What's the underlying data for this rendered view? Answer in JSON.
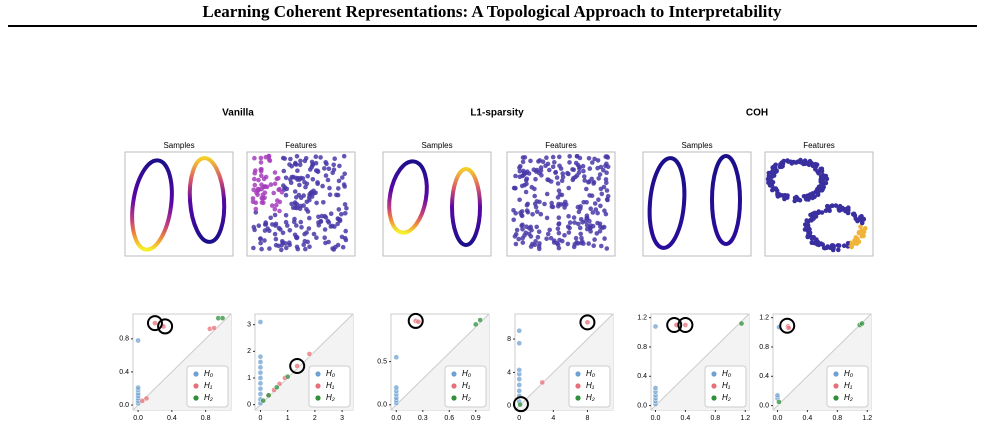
{
  "header": {
    "title": "Learning Coherent Representations: A Topological Approach to Interpretability"
  },
  "figure": {
    "groups": [
      {
        "title": "Vanilla",
        "panels": [
          "Samples",
          "Features"
        ]
      },
      {
        "title": "L1-sparsity",
        "panels": [
          "Samples",
          "Features"
        ]
      },
      {
        "title": "COH",
        "panels": [
          "Samples",
          "Features"
        ]
      }
    ]
  },
  "chart_data": [
    {
      "type": "scatter",
      "xlim": [
        -0.06,
        1.1
      ],
      "ylim": [
        -0.06,
        1.1
      ],
      "xticks": [
        {
          "value": 0,
          "label": "0.0"
        },
        0.4,
        0.8
      ],
      "yticks": [
        {
          "value": 0,
          "label": "0.0"
        },
        0.4,
        0.8
      ],
      "legend": "lower right",
      "series": [
        {
          "name": "H₀",
          "color": "#6fa1d2",
          "x": [
            0,
            0,
            0,
            0,
            0,
            0,
            0,
            0
          ],
          "values": [
            0.02,
            0.05,
            0.08,
            0.11,
            0.14,
            0.18,
            0.21,
            0.78
          ]
        },
        {
          "name": "H₁",
          "color": "#e8707a",
          "x": [
            0.05,
            0.1,
            0.2,
            0.3,
            0.85,
            0.9
          ],
          "values": [
            0.05,
            0.08,
            0.99,
            0.95,
            0.92,
            0.93
          ]
        },
        {
          "name": "H₂",
          "color": "#2f8f3b",
          "x": [
            0.95,
            1.0
          ],
          "values": [
            1.05,
            1.05
          ]
        }
      ],
      "highlight": {
        "x": [
          0.2,
          0.32
        ],
        "y": [
          0.99,
          0.95
        ]
      }
    },
    {
      "type": "scatter",
      "xlim": [
        -0.2,
        3.4
      ],
      "ylim": [
        -0.2,
        3.4
      ],
      "xticks": [
        0,
        1,
        2,
        3
      ],
      "yticks": [
        0,
        1,
        2,
        3
      ],
      "legend": "lower right",
      "series": [
        {
          "name": "H₀",
          "color": "#6fa1d2",
          "x": [
            0,
            0,
            0,
            0,
            0,
            0,
            0,
            0,
            0,
            0,
            0
          ],
          "values": [
            0.05,
            0.2,
            0.4,
            0.6,
            0.8,
            1.0,
            1.2,
            1.4,
            1.6,
            1.8,
            3.1
          ]
        },
        {
          "name": "H₁",
          "color": "#e8707a",
          "x": [
            0.3,
            0.5,
            0.7,
            0.9,
            1.35,
            1.8
          ],
          "values": [
            0.35,
            0.55,
            0.78,
            1.0,
            1.45,
            1.9
          ]
        },
        {
          "name": "H₂",
          "color": "#2f8f3b",
          "x": [
            0.1,
            0.3,
            0.6,
            1.0
          ],
          "values": [
            0.15,
            0.35,
            0.65,
            1.05
          ]
        }
      ],
      "highlight": {
        "x": [
          1.35
        ],
        "y": [
          1.45
        ]
      }
    },
    {
      "type": "scatter",
      "xlim": [
        -0.06,
        1.05
      ],
      "ylim": [
        -0.06,
        1.05
      ],
      "xticks": [
        {
          "value": 0,
          "label": "0.0"
        },
        0.3,
        0.6,
        0.9
      ],
      "yticks": [
        {
          "value": 0,
          "label": "0.0"
        },
        0.5
      ],
      "legend": "lower right",
      "series": [
        {
          "name": "H₀",
          "color": "#6fa1d2",
          "x": [
            0,
            0,
            0,
            0,
            0,
            0,
            0
          ],
          "values": [
            0.02,
            0.05,
            0.08,
            0.12,
            0.16,
            0.2,
            0.55
          ]
        },
        {
          "name": "H₁",
          "color": "#e8707a",
          "x": [
            0.22,
            0.25
          ],
          "values": [
            0.97,
            0.96
          ]
        },
        {
          "name": "H₂",
          "color": "#2f8f3b",
          "x": [
            0.9,
            0.95
          ],
          "values": [
            0.93,
            0.98
          ]
        }
      ],
      "highlight": {
        "x": [
          0.22
        ],
        "y": [
          0.97
        ]
      }
    },
    {
      "type": "scatter",
      "xlim": [
        -0.5,
        11
      ],
      "ylim": [
        -0.5,
        11
      ],
      "xticks": [
        0,
        4,
        8
      ],
      "yticks": [
        0,
        4,
        8
      ],
      "legend": "lower right",
      "series": [
        {
          "name": "H₀",
          "color": "#6fa1d2",
          "x": [
            0,
            0,
            0,
            0,
            0,
            0,
            0,
            0,
            0
          ],
          "values": [
            0.5,
            1.2,
            1.8,
            2.5,
            3.2,
            3.8,
            4.3,
            7.5,
            9
          ]
        },
        {
          "name": "H₁",
          "color": "#e8707a",
          "x": [
            2.7,
            8
          ],
          "values": [
            2.8,
            10
          ]
        },
        {
          "name": "H₂",
          "color": "#2f8f3b",
          "x": [
            0.1
          ],
          "values": [
            0.15
          ]
        }
      ],
      "highlight": {
        "x": [
          8,
          0.2
        ],
        "y": [
          10,
          0.2
        ]
      }
    },
    {
      "type": "scatter",
      "xlim": [
        -0.06,
        1.25
      ],
      "ylim": [
        -0.06,
        1.25
      ],
      "xticks": [
        {
          "value": 0,
          "label": "0.0"
        },
        0.4,
        0.8,
        1.2
      ],
      "yticks": [
        {
          "value": 0,
          "label": "0.0"
        },
        0.4,
        0.8,
        1.2
      ],
      "legend": "lower right",
      "series": [
        {
          "name": "H₀",
          "color": "#6fa1d2",
          "x": [
            0,
            0,
            0,
            0,
            0,
            0,
            0
          ],
          "values": [
            0.02,
            0.06,
            0.1,
            0.14,
            0.19,
            0.24,
            1.08
          ]
        },
        {
          "name": "H₁",
          "color": "#e8707a",
          "x": [
            0.28,
            0.4
          ],
          "values": [
            1.1,
            1.1
          ]
        },
        {
          "name": "H₂",
          "color": "#2f8f3b",
          "x": [
            1.15
          ],
          "values": [
            1.12
          ]
        }
      ],
      "highlight": {
        "x": [
          0.25,
          0.4
        ],
        "y": [
          1.1,
          1.1
        ]
      }
    },
    {
      "type": "scatter",
      "xlim": [
        -0.06,
        1.25
      ],
      "ylim": [
        -0.06,
        1.25
      ],
      "xticks": [
        {
          "value": 0,
          "label": "0.0"
        },
        0.4,
        0.8,
        1.2
      ],
      "yticks": [
        {
          "value": 0,
          "label": "0.0"
        },
        0.4,
        0.8,
        1.2
      ],
      "legend": "lower right",
      "series": [
        {
          "name": "H₀",
          "color": "#6fa1d2",
          "x": [
            0,
            0,
            0.02
          ],
          "values": [
            0.1,
            0.14,
            1.07
          ]
        },
        {
          "name": "H₁",
          "color": "#e8707a",
          "x": [
            0.14,
            0.15
          ],
          "values": [
            1.08,
            1.06
          ]
        },
        {
          "name": "H₂",
          "color": "#2f8f3b",
          "x": [
            0.02,
            1.1,
            1.13
          ],
          "values": [
            0.05,
            1.1,
            1.12
          ]
        }
      ],
      "highlight": {
        "x": [
          0.13
        ],
        "y": [
          1.09
        ]
      }
    }
  ]
}
